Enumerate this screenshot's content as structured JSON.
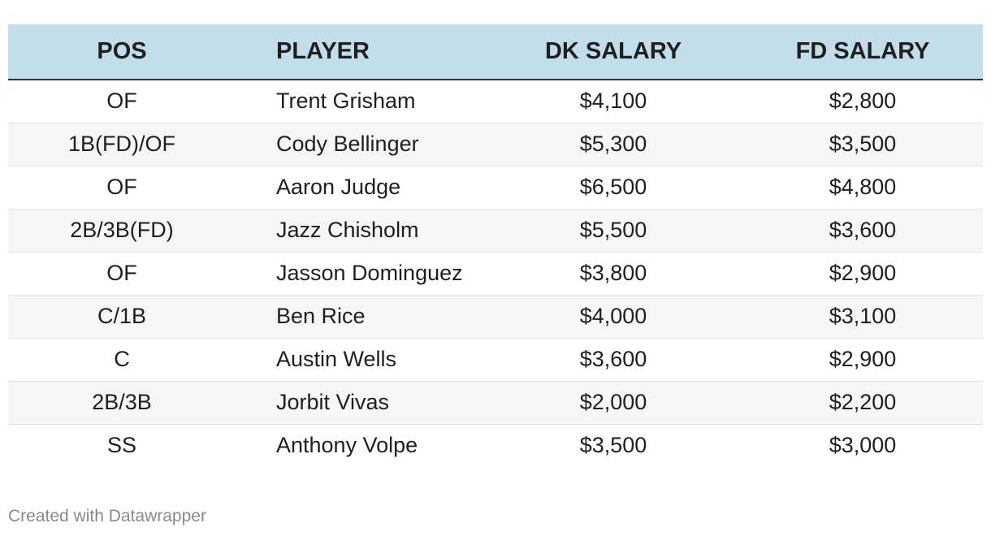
{
  "chart_data": {
    "type": "table",
    "columns": [
      "POS",
      "PLAYER",
      "DK SALARY",
      "FD SALARY"
    ],
    "rows": [
      [
        "OF",
        "Trent Grisham",
        "$4,100",
        "$2,800"
      ],
      [
        "1B(FD)/OF",
        "Cody Bellinger",
        "$5,300",
        "$3,500"
      ],
      [
        "OF",
        "Aaron Judge",
        "$6,500",
        "$4,800"
      ],
      [
        "2B/3B(FD)",
        "Jazz Chisholm",
        "$5,500",
        "$3,600"
      ],
      [
        "OF",
        "Jasson Dominguez",
        "$3,800",
        "$2,900"
      ],
      [
        "C/1B",
        "Ben Rice",
        "$4,000",
        "$3,100"
      ],
      [
        "C",
        "Austin Wells",
        "$3,600",
        "$2,900"
      ],
      [
        "2B/3B",
        "Jorbit Vivas",
        "$2,000",
        "$2,200"
      ],
      [
        "SS",
        "Anthony Volpe",
        "$3,500",
        "$3,000"
      ]
    ],
    "header_color": "#c2deea",
    "stripe_color": "#f6f6f6"
  },
  "footer": {
    "credit": "Created with Datawrapper"
  }
}
